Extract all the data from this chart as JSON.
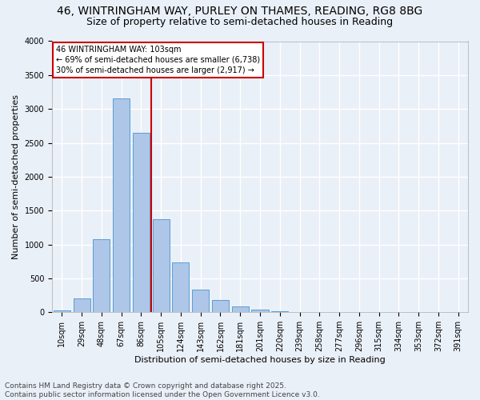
{
  "title1": "46, WINTRINGHAM WAY, PURLEY ON THAMES, READING, RG8 8BG",
  "title2": "Size of property relative to semi-detached houses in Reading",
  "xlabel": "Distribution of semi-detached houses by size in Reading",
  "ylabel": "Number of semi-detached properties",
  "bar_labels": [
    "10sqm",
    "29sqm",
    "48sqm",
    "67sqm",
    "86sqm",
    "105sqm",
    "124sqm",
    "143sqm",
    "162sqm",
    "181sqm",
    "201sqm",
    "220sqm",
    "239sqm",
    "258sqm",
    "277sqm",
    "296sqm",
    "315sqm",
    "334sqm",
    "353sqm",
    "372sqm",
    "391sqm"
  ],
  "bar_values": [
    30,
    200,
    1080,
    3150,
    2650,
    1370,
    740,
    330,
    175,
    80,
    40,
    10,
    5,
    2,
    1,
    0,
    0,
    0,
    0,
    0,
    0
  ],
  "bar_color": "#aec6e8",
  "bar_edge_color": "#5a9fd4",
  "background_color": "#eaf0f8",
  "grid_color": "#ffffff",
  "vline_color": "#cc0000",
  "annotation_title": "46 WINTRINGHAM WAY: 103sqm",
  "annotation_line1": "← 69% of semi-detached houses are smaller (6,738)",
  "annotation_line2": "30% of semi-detached houses are larger (2,917) →",
  "annotation_box_color": "#cc0000",
  "ylim": [
    0,
    4000
  ],
  "yticks": [
    0,
    500,
    1000,
    1500,
    2000,
    2500,
    3000,
    3500,
    4000
  ],
  "footer1": "Contains HM Land Registry data © Crown copyright and database right 2025.",
  "footer2": "Contains public sector information licensed under the Open Government Licence v3.0.",
  "title_fontsize": 10,
  "subtitle_fontsize": 9,
  "label_fontsize": 8,
  "tick_fontsize": 7,
  "footer_fontsize": 6.5
}
